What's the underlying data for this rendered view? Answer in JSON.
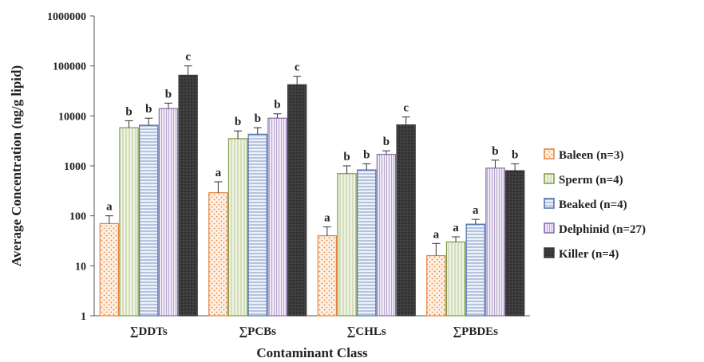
{
  "chart_data": {
    "type": "bar",
    "scale": "log",
    "xlabel": "Contaminant Class",
    "ylabel": "Average Concentration (ng/g lipid)",
    "ylim": [
      1,
      1000000
    ],
    "y_ticks": [
      "1",
      "10",
      "100",
      "1000",
      "10000",
      "100000",
      "1000000"
    ],
    "categories": [
      "∑DDTs",
      "∑PCBs",
      "∑CHLs",
      "∑PBDEs"
    ],
    "legend_position": "right",
    "grid": false,
    "series": [
      {
        "name": "Baleen (n=3)",
        "color": "#e8823a",
        "pattern": "dotted",
        "values": [
          70,
          290,
          40,
          16
        ],
        "error_upper": [
          100,
          480,
          60,
          28
        ],
        "letters": [
          "a",
          "a",
          "a",
          "a"
        ]
      },
      {
        "name": "Sperm (n=4)",
        "color": "#7f9a4a",
        "pattern": "vertical-lines",
        "values": [
          5800,
          3500,
          700,
          30
        ],
        "error_upper": [
          8000,
          5000,
          1000,
          38
        ],
        "letters": [
          "b",
          "b",
          "b",
          "a"
        ]
      },
      {
        "name": "Beaked (n=4)",
        "color": "#4a72ae",
        "pattern": "horizontal-lines",
        "values": [
          6500,
          4300,
          830,
          68
        ],
        "error_upper": [
          9000,
          5800,
          1100,
          85
        ],
        "letters": [
          "b",
          "b",
          "b",
          "a"
        ]
      },
      {
        "name": "Delphinid (n=27)",
        "color": "#8a6aac",
        "pattern": "vertical-lines",
        "values": [
          14000,
          9000,
          1700,
          900
        ],
        "error_upper": [
          18000,
          11000,
          2000,
          1300
        ],
        "letters": [
          "b",
          "b",
          "b",
          "b"
        ]
      },
      {
        "name": "Killer (n=4)",
        "color": "#3a3a3a",
        "pattern": "dark-grid",
        "values": [
          65000,
          42000,
          6600,
          800
        ],
        "error_upper": [
          100000,
          62000,
          9500,
          1100
        ],
        "letters": [
          "c",
          "c",
          "c",
          "b"
        ]
      }
    ]
  }
}
